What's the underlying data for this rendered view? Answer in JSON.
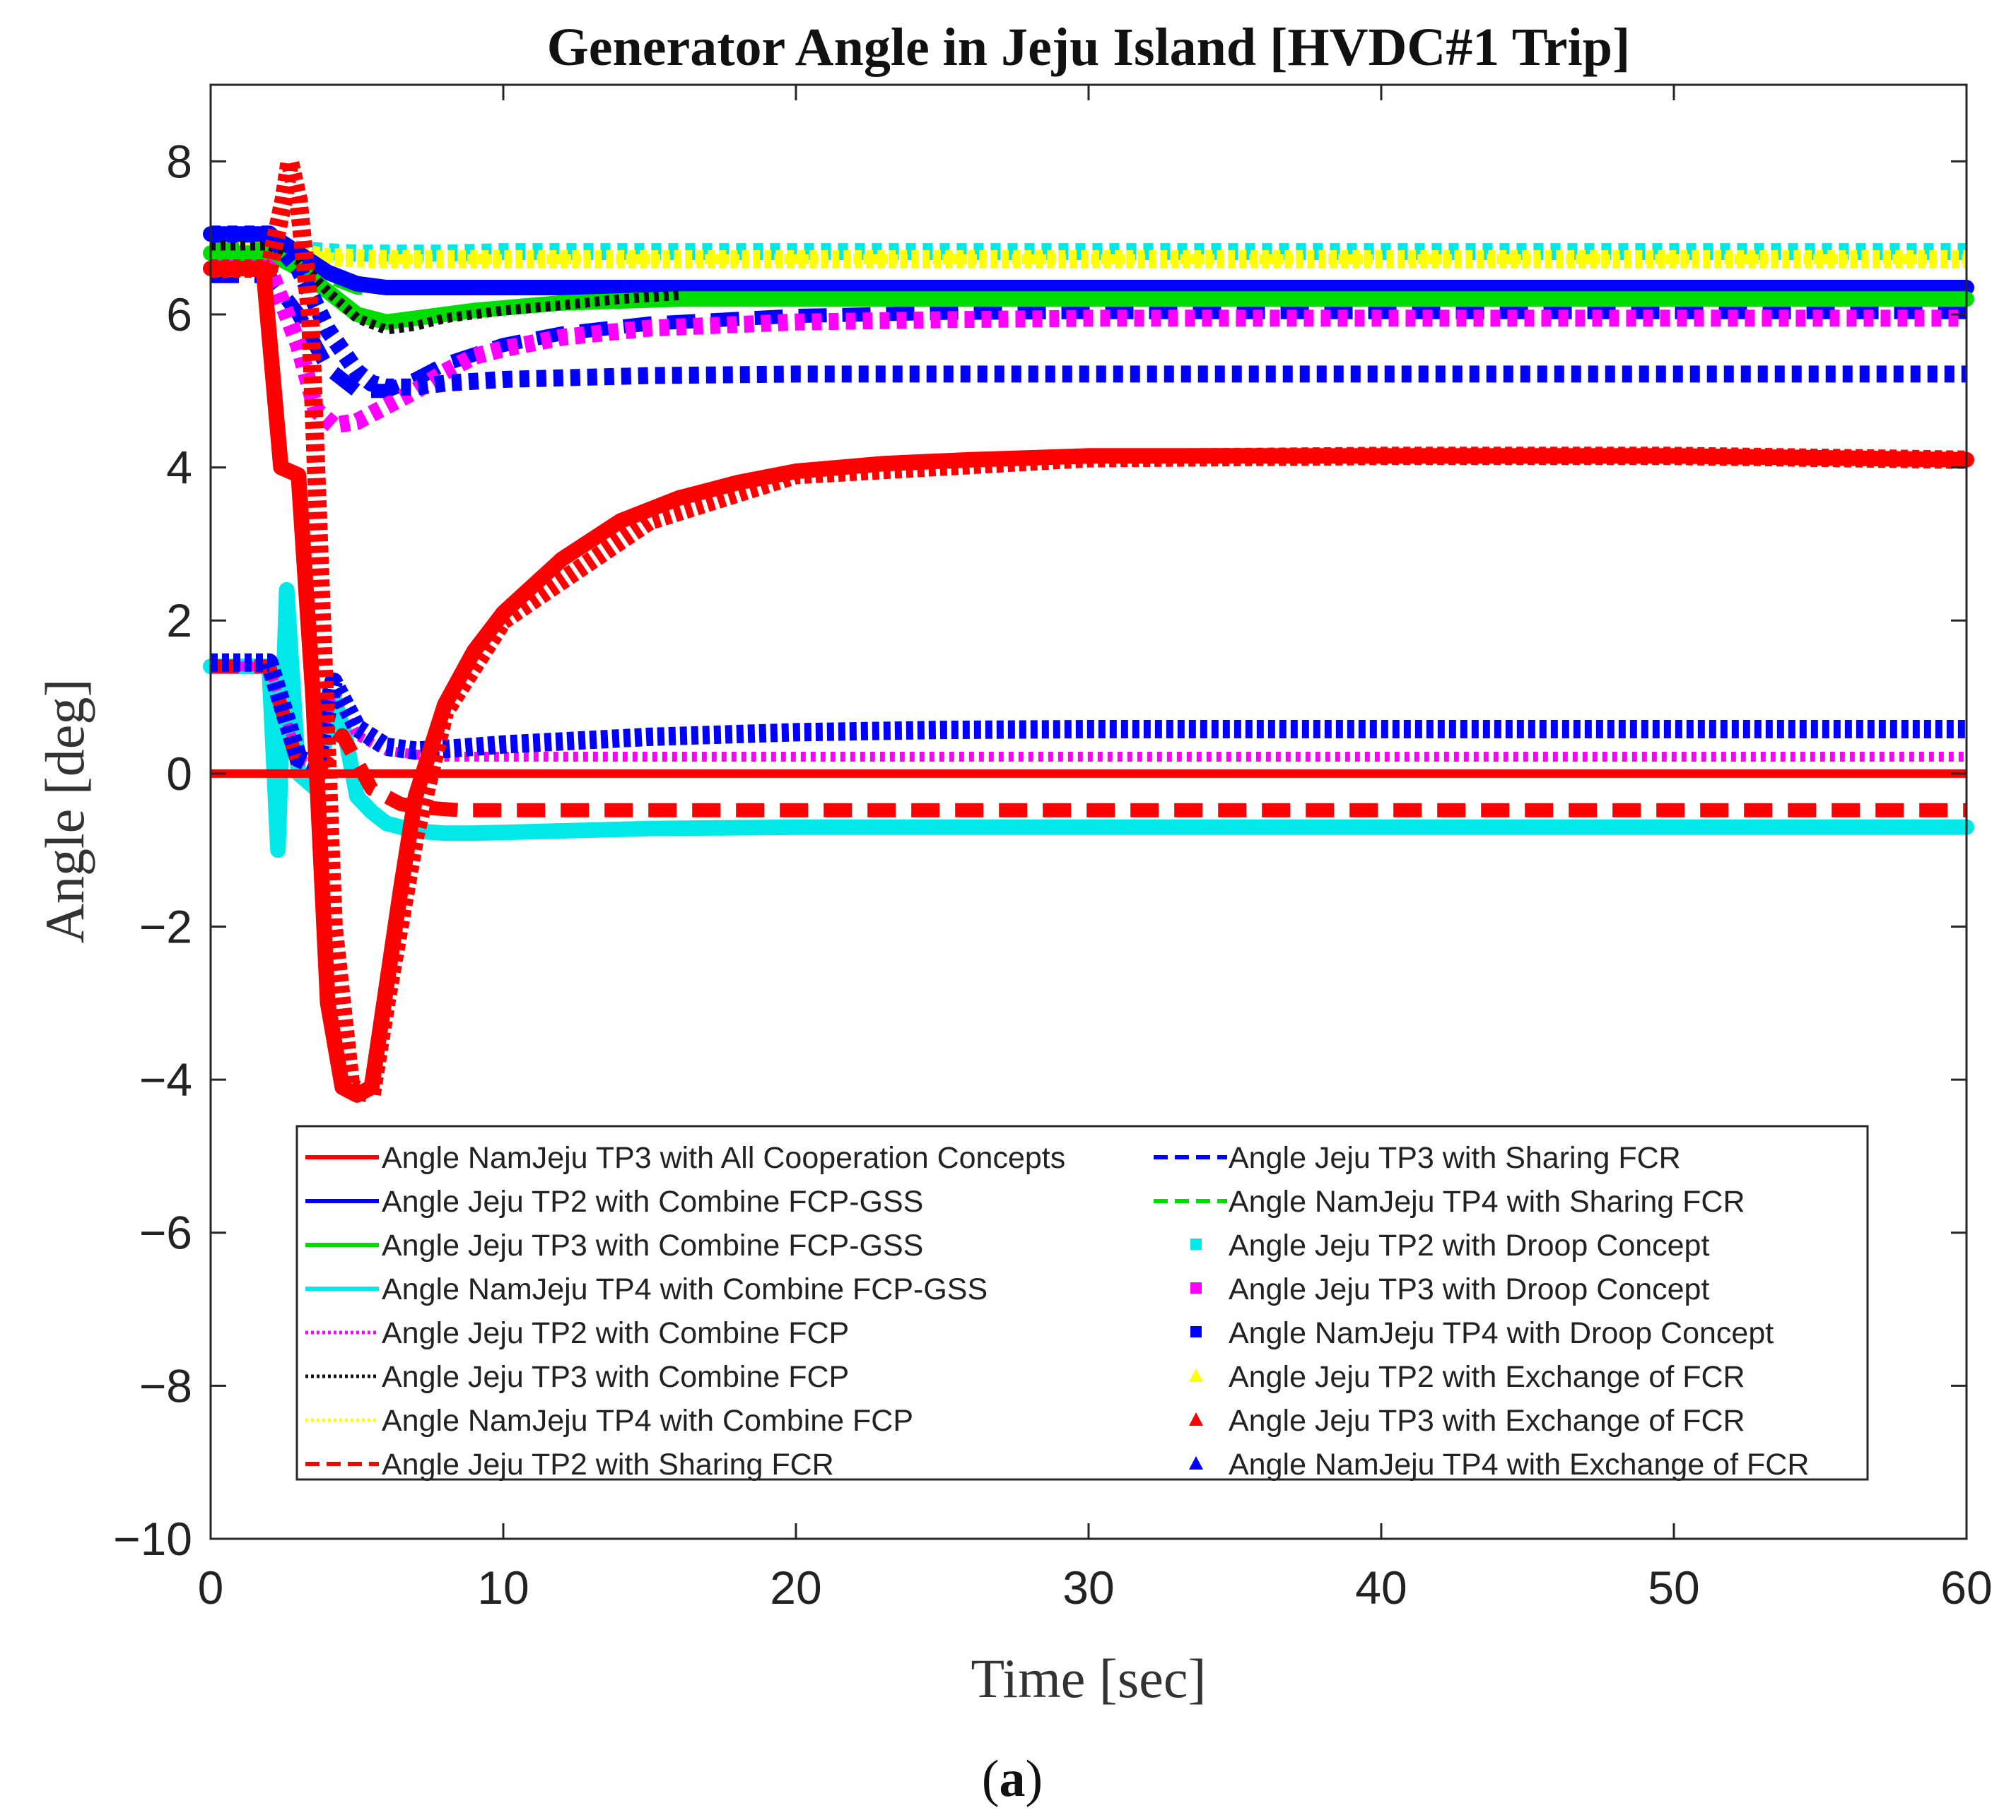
{
  "chart_data": {
    "type": "line",
    "title": "Generator Angle in Jeju Island [HVDC#1 Trip]",
    "xlabel": "Time [sec]",
    "ylabel": "Angle [deg]",
    "caption_prefix": "(",
    "caption_letter": "a",
    "caption_suffix": ")",
    "xlim": [
      0,
      60
    ],
    "ylim": [
      -10,
      9
    ],
    "xticks": [
      0,
      10,
      20,
      30,
      40,
      50,
      60
    ],
    "xtick_labels": [
      "0",
      "10",
      "20",
      "30",
      "40",
      "50",
      "60"
    ],
    "yticks": [
      8,
      6,
      4,
      2,
      0,
      -2,
      -4,
      -6,
      -8,
      -10
    ],
    "ytick_labels": [
      "8",
      "6",
      "4",
      "2",
      "0",
      "−2",
      "−4",
      "−6",
      "−8",
      "−10"
    ],
    "grid": false,
    "legend_position": "lower-center",
    "series": [
      {
        "name": "Angle NamJeju TP3 with All Cooperation Concepts",
        "color": "#ff0000",
        "style": "solid",
        "x": [
          0,
          1.8,
          2.4,
          3,
          3.5,
          4,
          4.5,
          5,
          5.5,
          6,
          6.5,
          7,
          8,
          9,
          10,
          12,
          14,
          16,
          18,
          20,
          23,
          26,
          30,
          35,
          40,
          50,
          60
        ],
        "y": [
          6.6,
          6.6,
          4.0,
          3.9,
          1.0,
          -3.0,
          -4.1,
          -4.2,
          -4.1,
          -2.8,
          -1.5,
          -0.3,
          0.9,
          1.6,
          2.1,
          2.8,
          3.3,
          3.6,
          3.8,
          3.95,
          4.05,
          4.1,
          4.15,
          4.15,
          4.15,
          4.15,
          4.1
        ]
      },
      {
        "name": "Angle Jeju TP2 with Combine FCP-GSS",
        "color": "#0000ff",
        "style": "solid",
        "x": [
          0,
          2,
          3,
          4,
          5,
          6,
          8,
          10,
          15,
          20,
          30,
          40,
          50,
          60
        ],
        "y": [
          7.05,
          7.05,
          6.8,
          6.55,
          6.4,
          6.35,
          6.35,
          6.35,
          6.35,
          6.35,
          6.35,
          6.35,
          6.35,
          6.35
        ]
      },
      {
        "name": "Angle Jeju TP3 with Combine FCP-GSS",
        "color": "#00dd00",
        "style": "solid",
        "x": [
          0,
          2,
          3,
          4,
          5,
          6,
          7,
          9,
          12,
          16,
          20,
          30,
          40,
          50,
          60
        ],
        "y": [
          6.8,
          6.8,
          6.6,
          6.3,
          6.0,
          5.9,
          5.95,
          6.05,
          6.15,
          6.2,
          6.2,
          6.2,
          6.2,
          6.2,
          6.2
        ]
      },
      {
        "name": "Angle NamJeju TP4 with Combine FCP-GSS",
        "color": "#00e8e8",
        "style": "solid",
        "x": [
          0,
          2,
          2.3,
          2.6,
          3,
          3.6,
          4.2,
          4.6,
          5,
          5.5,
          6,
          7,
          8,
          9,
          10,
          15,
          20,
          30,
          40,
          50,
          60
        ],
        "y": [
          1.4,
          1.4,
          -1.0,
          2.4,
          0.0,
          -0.2,
          1.0,
          0.5,
          -0.3,
          -0.5,
          -0.65,
          -0.75,
          -0.78,
          -0.78,
          -0.77,
          -0.72,
          -0.7,
          -0.7,
          -0.7,
          -0.7,
          -0.7
        ]
      },
      {
        "name": "Angle Jeju TP2 with Combine FCP",
        "color": "#ff00ff",
        "style": "dotted",
        "x": [
          0,
          2,
          3,
          3.6,
          4.2,
          5,
          6,
          7,
          8,
          10,
          20,
          30,
          40,
          50,
          60
        ],
        "y": [
          1.4,
          1.4,
          0.2,
          0.1,
          1.1,
          0.5,
          0.3,
          0.25,
          0.22,
          0.22,
          0.22,
          0.22,
          0.22,
          0.22,
          0.22
        ]
      },
      {
        "name": "Angle Jeju TP3 with Combine FCP",
        "color": "#111111",
        "style": "dotted",
        "x": [
          0,
          2,
          3,
          4,
          5,
          6,
          7,
          8,
          10,
          12,
          14,
          16
        ],
        "y": [
          6.9,
          6.9,
          6.7,
          6.3,
          5.95,
          5.8,
          5.85,
          5.95,
          6.05,
          6.12,
          6.2,
          6.25
        ]
      },
      {
        "name": "Angle NamJeju TP4 with Combine FCP",
        "color": "#ffff00",
        "style": "dotted",
        "x": [
          0,
          2,
          3,
          4,
          5,
          7,
          10,
          20,
          30,
          40,
          50,
          60
        ],
        "y": [
          6.85,
          6.85,
          6.8,
          6.75,
          6.72,
          6.72,
          6.72,
          6.72,
          6.72,
          6.72,
          6.72,
          6.72
        ]
      },
      {
        "name": "Angle Jeju TP2 with Sharing FCR",
        "color": "#ff0000",
        "style": "dashed",
        "x": [
          0,
          2,
          3,
          3.6,
          4.5,
          5.5,
          6.5,
          7.5,
          8.5,
          10,
          20,
          30,
          40,
          50,
          60
        ],
        "y": [
          1.4,
          1.4,
          0.1,
          0.0,
          0.5,
          -0.2,
          -0.4,
          -0.45,
          -0.48,
          -0.48,
          -0.48,
          -0.48,
          -0.48,
          -0.48,
          -0.48
        ]
      },
      {
        "name": "Angle Jeju TP3 with Sharing FCR",
        "color": "#0000ff",
        "style": "dashed",
        "x": [
          0,
          2,
          3,
          4,
          5,
          6,
          7,
          8,
          10,
          12,
          15,
          20,
          25,
          30,
          40,
          50,
          60
        ],
        "y": [
          6.5,
          6.5,
          6.0,
          5.3,
          5.0,
          5.0,
          5.15,
          5.35,
          5.6,
          5.75,
          5.88,
          5.98,
          6.02,
          6.03,
          6.03,
          6.03,
          6.03
        ]
      },
      {
        "name": "Angle NamJeju TP4 with Sharing FCR",
        "color": "#00dd00",
        "style": "dashed",
        "x": [
          0,
          2,
          3,
          4,
          5,
          6,
          8,
          10,
          20,
          30,
          40,
          50,
          60
        ],
        "y": [
          6.85,
          6.85,
          6.7,
          6.5,
          6.35,
          6.35,
          6.35,
          6.36,
          6.36,
          6.36,
          6.36,
          6.36,
          6.36
        ]
      },
      {
        "name": "Angle Jeju TP2 with Droop Concept",
        "color": "#00e8e8",
        "style": "square",
        "x": [
          0,
          2,
          3,
          4,
          5,
          6,
          8,
          10,
          20,
          30,
          40,
          50,
          60
        ],
        "y": [
          6.9,
          6.9,
          6.85,
          6.82,
          6.8,
          6.8,
          6.8,
          6.82,
          6.82,
          6.82,
          6.82,
          6.82,
          6.82
        ]
      },
      {
        "name": "Angle Jeju TP3 with Droop Concept",
        "color": "#ff00ff",
        "style": "square",
        "x": [
          0,
          2,
          3,
          3.6,
          4.2,
          5,
          6,
          7,
          8,
          9,
          10,
          12,
          15,
          20,
          25,
          30,
          40,
          50,
          60
        ],
        "y": [
          6.6,
          6.6,
          5.6,
          4.75,
          4.55,
          4.6,
          4.8,
          5.0,
          5.25,
          5.45,
          5.55,
          5.7,
          5.82,
          5.9,
          5.93,
          5.95,
          5.95,
          5.95,
          5.95
        ]
      },
      {
        "name": "Angle NamJeju TP4 with Droop Concept",
        "color": "#0000ff",
        "style": "square",
        "x": [
          0,
          2,
          3,
          4,
          5,
          5.5,
          6,
          7,
          8,
          10,
          15,
          20,
          30,
          40,
          50,
          60
        ],
        "y": [
          7.05,
          7.05,
          6.6,
          5.8,
          5.25,
          5.1,
          5.05,
          5.05,
          5.1,
          5.15,
          5.2,
          5.22,
          5.22,
          5.22,
          5.22,
          5.22
        ]
      },
      {
        "name": "Angle Jeju TP2 with Exchange of FCR",
        "color": "#ffff00",
        "style": "triangle",
        "x": [
          0,
          2,
          3,
          4,
          6,
          10,
          20,
          30,
          40,
          50,
          60
        ],
        "y": [
          6.85,
          6.85,
          6.8,
          6.75,
          6.72,
          6.72,
          6.72,
          6.72,
          6.72,
          6.72,
          6.72
        ]
      },
      {
        "name": "Angle Jeju TP3 with Exchange of FCR",
        "color": "#ff0000",
        "style": "triangle",
        "x": [
          0,
          2,
          2.5,
          2.7,
          3,
          3.4,
          3.7,
          4.2,
          4.8,
          5.5,
          6,
          7,
          8,
          10,
          15,
          20,
          30,
          40,
          50,
          60
        ],
        "y": [
          6.6,
          6.6,
          7.5,
          8.0,
          7.5,
          6.0,
          3.0,
          -2.0,
          -4.1,
          -4.2,
          -3.0,
          -0.8,
          0.8,
          2.0,
          3.3,
          3.9,
          4.12,
          4.15,
          4.15,
          4.1
        ]
      },
      {
        "name": "Angle NamJeju TP4 with Exchange of FCR",
        "color": "#0000ff",
        "style": "triangle",
        "x": [
          0,
          2,
          3,
          3.6,
          4.2,
          5,
          6,
          7,
          8,
          10,
          15,
          20,
          25,
          30,
          40,
          50,
          60
        ],
        "y": [
          1.45,
          1.45,
          0.2,
          0.1,
          1.2,
          0.6,
          0.35,
          0.3,
          0.32,
          0.38,
          0.48,
          0.54,
          0.57,
          0.58,
          0.58,
          0.58,
          0.58
        ]
      }
    ]
  }
}
